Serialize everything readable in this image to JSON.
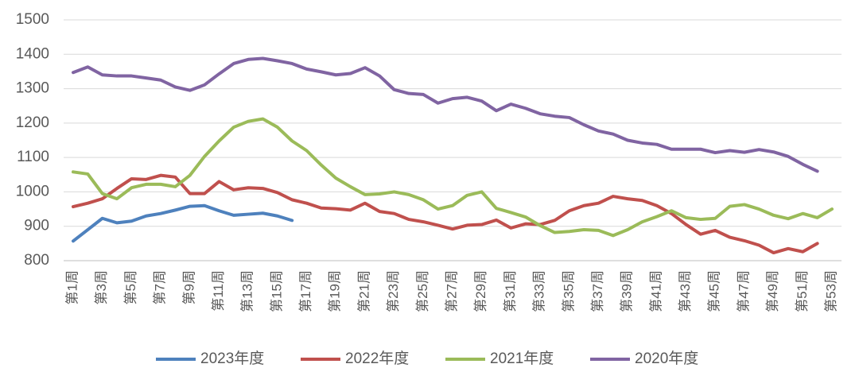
{
  "chart_data": {
    "type": "line",
    "categories": [
      "第1周",
      null,
      "第3周",
      null,
      "第5周",
      null,
      "第7周",
      null,
      "第9周",
      null,
      "第11周",
      null,
      "第13周",
      null,
      "第15周",
      null,
      "第17周",
      null,
      "第19周",
      null,
      "第21周",
      null,
      "第23周",
      null,
      "第25周",
      null,
      "第27周",
      null,
      "第29周",
      null,
      "第31周",
      null,
      "第33周",
      null,
      "第35周",
      null,
      "第37周",
      null,
      "第39周",
      null,
      "第41周",
      null,
      "第43周",
      null,
      "第45周",
      null,
      "第47周",
      null,
      "第49周",
      null,
      "第51周",
      null,
      "第53周"
    ],
    "series": [
      {
        "name": "2023年度",
        "color": "#4e81bd",
        "values": [
          857,
          890,
          923,
          910,
          915,
          930,
          937,
          947,
          958,
          960,
          945,
          932,
          935,
          938,
          930,
          917,
          null,
          null,
          null,
          null,
          null,
          null,
          null,
          null,
          null,
          null,
          null,
          null,
          null,
          null,
          null,
          null,
          null,
          null,
          null,
          null,
          null,
          null,
          null,
          null,
          null,
          null,
          null,
          null,
          null,
          null,
          null,
          null,
          null,
          null,
          null,
          null,
          null
        ]
      },
      {
        "name": "2022年度",
        "color": "#c0504d",
        "values": [
          957,
          967,
          980,
          1010,
          1038,
          1036,
          1048,
          1043,
          995,
          995,
          1030,
          1006,
          1012,
          1010,
          998,
          977,
          967,
          953,
          951,
          947,
          967,
          943,
          937,
          920,
          913,
          903,
          892,
          903,
          905,
          918,
          895,
          907,
          905,
          917,
          945,
          960,
          967,
          987,
          980,
          975,
          960,
          937,
          905,
          877,
          888,
          868,
          858,
          845,
          823,
          835,
          826,
          850,
          null
        ]
      },
      {
        "name": "2021年度",
        "color": "#9bbb59",
        "values": [
          1058,
          1052,
          995,
          980,
          1012,
          1022,
          1022,
          1015,
          1048,
          1103,
          1148,
          1188,
          1205,
          1212,
          1188,
          1148,
          1120,
          1078,
          1040,
          1015,
          992,
          994,
          1000,
          992,
          977,
          950,
          960,
          990,
          1000,
          952,
          940,
          927,
          902,
          882,
          885,
          890,
          888,
          873,
          890,
          913,
          928,
          945,
          925,
          920,
          923,
          958,
          963,
          950,
          932,
          922,
          937,
          925,
          950
        ]
      },
      {
        "name": "2020年度",
        "color": "#8064a2",
        "values": [
          1347,
          1363,
          1340,
          1337,
          1337,
          1331,
          1325,
          1305,
          1295,
          1311,
          1343,
          1373,
          1385,
          1388,
          1381,
          1373,
          1357,
          1349,
          1340,
          1344,
          1361,
          1337,
          1297,
          1286,
          1283,
          1258,
          1271,
          1275,
          1264,
          1236,
          1255,
          1243,
          1227,
          1220,
          1216,
          1195,
          1177,
          1168,
          1150,
          1142,
          1138,
          1124,
          1124,
          1124,
          1114,
          1120,
          1115,
          1123,
          1116,
          1103,
          1080,
          1060,
          null
        ]
      }
    ],
    "ylim": [
      800,
      1500
    ],
    "yticks": [
      800,
      900,
      1000,
      1100,
      1200,
      1300,
      1400,
      1500
    ],
    "grid": true,
    "legend": "bottom"
  }
}
